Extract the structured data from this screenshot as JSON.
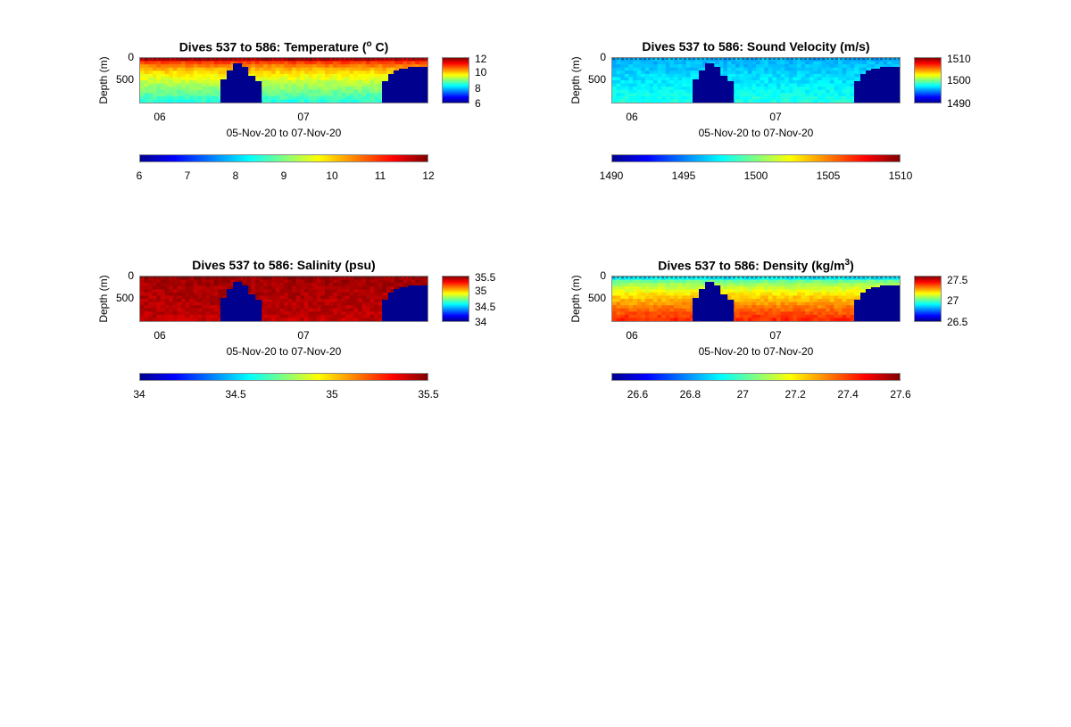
{
  "chart_data": [
    {
      "type": "heatmap",
      "variable": "temperature",
      "title": "Dives 537 to 586: Temperature (",
      "title_sup": "o",
      "title_end": " C)",
      "ylabel": "Depth (m)",
      "yticks": [
        "0",
        "500"
      ],
      "yticks_values": [
        0,
        500
      ],
      "ylim": [
        0,
        1000
      ],
      "xticks": [
        "06",
        "07"
      ],
      "xlabel": "05-Nov-20 to 07-Nov-20",
      "colormap": "jet",
      "clim": [
        6,
        12
      ],
      "colorbar_ticks": [
        "12",
        "10",
        "8",
        "6"
      ],
      "colorbar_tick_values": [
        12,
        10,
        8,
        6
      ],
      "bottom_colorbar_ticks": [
        "6",
        "7",
        "8",
        "9",
        "10",
        "11",
        "12"
      ],
      "bottom_colorbar_tick_values": [
        6,
        7,
        8,
        9,
        10,
        11,
        12
      ],
      "surface_value": 11.6,
      "deep_value": 8.5,
      "gradient_mode": "layered"
    },
    {
      "type": "heatmap",
      "variable": "sound_velocity",
      "title": "Dives 537 to 586: Sound Velocity (m/s)",
      "ylabel": "Depth (m)",
      "yticks": [
        "0",
        "500"
      ],
      "yticks_values": [
        0,
        500
      ],
      "ylim": [
        0,
        1000
      ],
      "xticks": [
        "06",
        "07"
      ],
      "xlabel": "05-Nov-20 to 07-Nov-20",
      "colormap": "jet",
      "clim": [
        1490,
        1510
      ],
      "colorbar_ticks": [
        "1510",
        "1500",
        "1490"
      ],
      "colorbar_tick_values": [
        1510,
        1500,
        1490
      ],
      "bottom_colorbar_ticks": [
        "1490",
        "1495",
        "1500",
        "1505",
        "1510"
      ],
      "bottom_colorbar_tick_values": [
        1490,
        1495,
        1500,
        1505,
        1510
      ],
      "surface_value": 1496,
      "deep_value": 1498,
      "gradient_mode": "flat"
    },
    {
      "type": "heatmap",
      "variable": "salinity",
      "title": "Dives 537 to 586: Salinity (psu)",
      "ylabel": "Depth (m)",
      "yticks": [
        "0",
        "500"
      ],
      "yticks_values": [
        0,
        500
      ],
      "ylim": [
        0,
        1000
      ],
      "xticks": [
        "06",
        "07"
      ],
      "xlabel": "05-Nov-20 to 07-Nov-20",
      "colormap": "jet",
      "clim": [
        34,
        35.5
      ],
      "colorbar_ticks": [
        "35.5",
        "35",
        "34.5",
        "34"
      ],
      "colorbar_tick_values": [
        35.5,
        35,
        34.5,
        34
      ],
      "bottom_colorbar_ticks": [
        "34",
        "34.5",
        "35",
        "35.5"
      ],
      "bottom_colorbar_tick_values": [
        34,
        34.5,
        35,
        35.5
      ],
      "surface_value": 35.45,
      "deep_value": 35.4,
      "gradient_mode": "flat"
    },
    {
      "type": "heatmap",
      "variable": "density",
      "title": "Dives 537 to 586: Density (kg/m",
      "title_sup": "3",
      "title_end": ")",
      "ylabel": "Depth (m)",
      "yticks": [
        "0",
        "500"
      ],
      "yticks_values": [
        0,
        500
      ],
      "ylim": [
        0,
        1000
      ],
      "xticks": [
        "06",
        "07"
      ],
      "xlabel": "05-Nov-20 to 07-Nov-20",
      "colormap": "jet",
      "clim": [
        26.5,
        27.6
      ],
      "colorbar_ticks": [
        "27.5",
        "27",
        "26.5"
      ],
      "colorbar_tick_values": [
        27.5,
        27,
        26.5
      ],
      "bottom_colorbar_ticks": [
        "26.6",
        "26.8",
        "27",
        "27.2",
        "27.4",
        "27.6"
      ],
      "bottom_colorbar_tick_values": [
        26.6,
        26.8,
        27,
        27.2,
        27.4,
        27.6
      ],
      "surface_value": 26.9,
      "deep_value": 27.42,
      "gradient_mode": "layered"
    }
  ]
}
